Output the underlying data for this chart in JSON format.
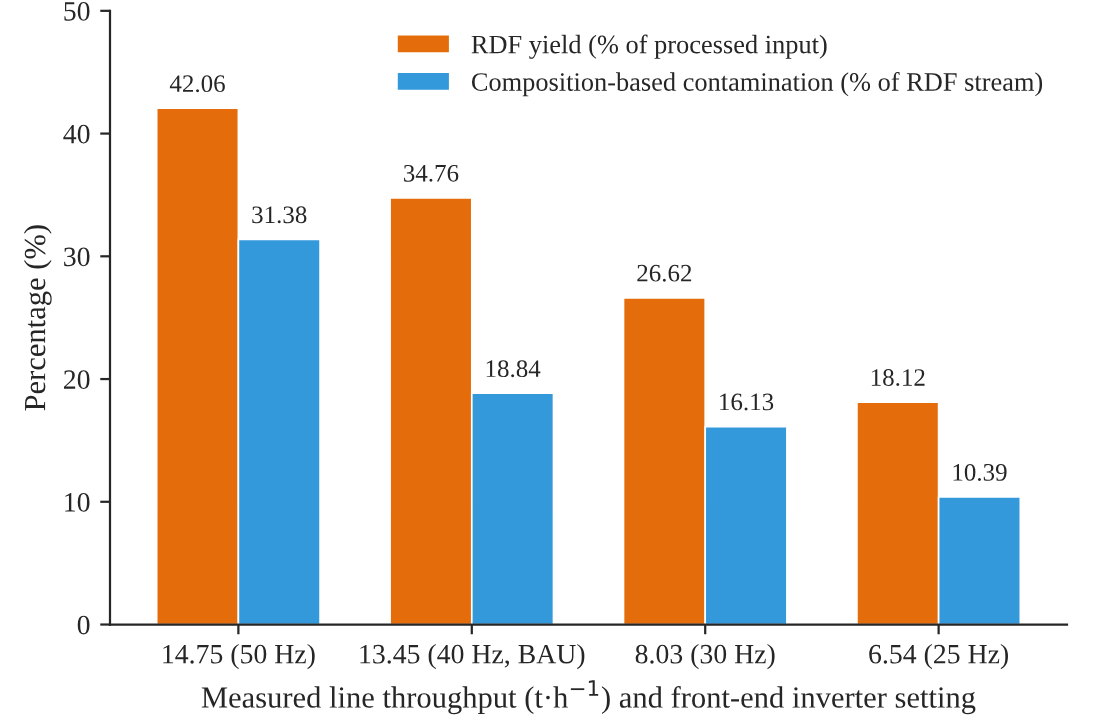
{
  "chart_data": {
    "type": "bar",
    "xlabel": "Measured line throughput (t·h$^{−1}$) and front-end inverter setting",
    "ylabel": "Percentage (%)",
    "categories": [
      "14.75 (50 Hz)",
      "13.45 (40 Hz, BAU)",
      "8.03 (30 Hz)",
      "6.54 (25 Hz)"
    ],
    "series": [
      {
        "name": "RDF yield (% of processed input)",
        "color": "#e46c0a",
        "values": [
          42.06,
          34.76,
          26.62,
          18.12
        ]
      },
      {
        "name": "Composition-based contamination (% of RDF stream)",
        "color": "#3399db",
        "values": [
          31.38,
          18.84,
          16.13,
          10.39
        ]
      }
    ],
    "ylim": [
      0,
      50
    ],
    "yticks": [
      0,
      10,
      20,
      30,
      40,
      50
    ],
    "data_labels": true,
    "legend": "top right",
    "grid": false
  }
}
